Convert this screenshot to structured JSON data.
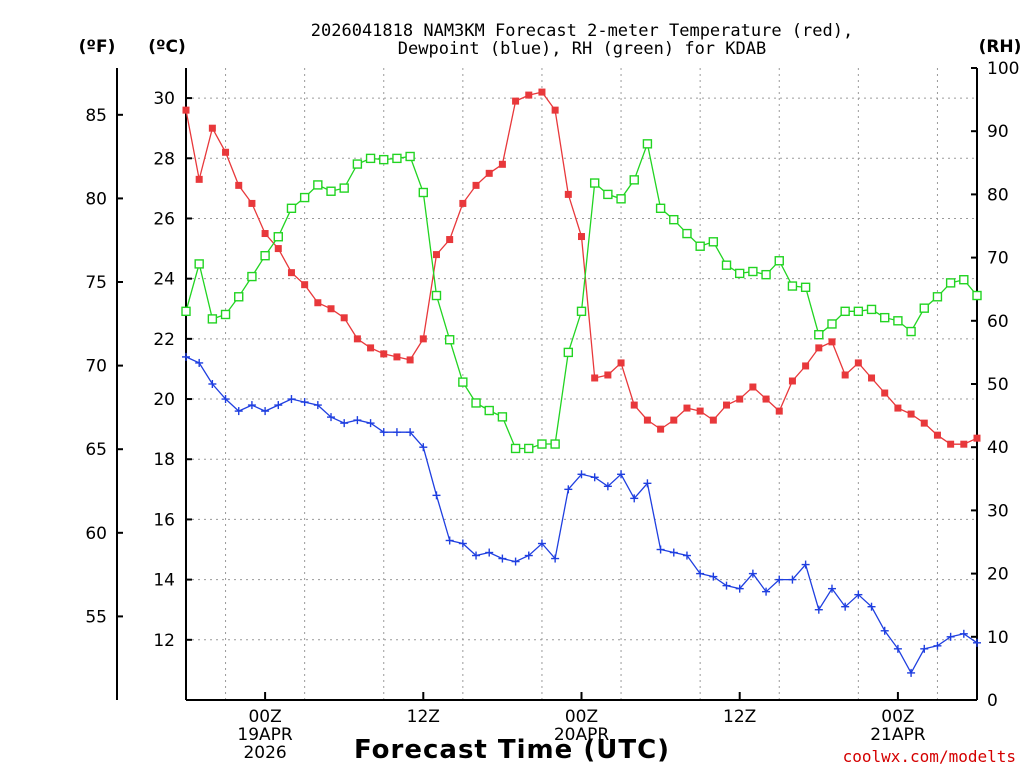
{
  "chart_data": {
    "type": "line",
    "title_line1": "2026041818 NAM3KM Forecast 2-meter Temperature (red),",
    "title_line2": "Dewpoint (blue), RH (green) for KDAB",
    "xlabel": "Forecast Time (UTC)",
    "credit": "coolwx.com/modelts",
    "units": {
      "fahrenheit": "(ºF)",
      "celsius": "(ºC)",
      "rh": "(RH)"
    },
    "x_range_hours": [
      -6,
      54
    ],
    "x_ticks": [
      {
        "hour": 0,
        "lines": [
          "00Z",
          "19APR",
          "2026"
        ]
      },
      {
        "hour": 12,
        "lines": [
          "12Z"
        ]
      },
      {
        "hour": 24,
        "lines": [
          "00Z",
          "20APR"
        ]
      },
      {
        "hour": 36,
        "lines": [
          "12Z"
        ]
      },
      {
        "hour": 48,
        "lines": [
          "00Z",
          "21APR"
        ]
      }
    ],
    "y_c_range": [
      10,
      31
    ],
    "y_c_ticks": [
      "12",
      "14",
      "16",
      "18",
      "20",
      "22",
      "24",
      "26",
      "28",
      "30"
    ],
    "y_f_ticks": [
      "55",
      "60",
      "65",
      "70",
      "75",
      "80",
      "85"
    ],
    "y_rh_range": [
      0,
      100
    ],
    "y_rh_ticks": [
      "0",
      "10",
      "20",
      "30",
      "40",
      "50",
      "60",
      "70",
      "80",
      "90",
      "100"
    ],
    "grid": true,
    "series": [
      {
        "name": "Temperature",
        "color": "#e8383b",
        "axis": "celsius",
        "marker": "filled-square",
        "values": [
          [
            -6,
            29.6
          ],
          [
            -5,
            27.3
          ],
          [
            -4,
            29.0
          ],
          [
            -3,
            28.2
          ],
          [
            -2,
            27.1
          ],
          [
            -1,
            26.5
          ],
          [
            0,
            25.5
          ],
          [
            1,
            25.0
          ],
          [
            2,
            24.2
          ],
          [
            3,
            23.8
          ],
          [
            4,
            23.2
          ],
          [
            5,
            23.0
          ],
          [
            6,
            22.7
          ],
          [
            7,
            22.0
          ],
          [
            8,
            21.7
          ],
          [
            9,
            21.5
          ],
          [
            10,
            21.4
          ],
          [
            11,
            21.3
          ],
          [
            12,
            22.0
          ],
          [
            13,
            24.8
          ],
          [
            14,
            25.3
          ],
          [
            15,
            26.5
          ],
          [
            16,
            27.1
          ],
          [
            17,
            27.5
          ],
          [
            18,
            27.8
          ],
          [
            19,
            29.9
          ],
          [
            20,
            30.1
          ],
          [
            21,
            30.2
          ],
          [
            22,
            29.6
          ],
          [
            23,
            26.8
          ],
          [
            24,
            25.4
          ],
          [
            25,
            20.7
          ],
          [
            26,
            20.8
          ],
          [
            27,
            21.2
          ],
          [
            28,
            19.8
          ],
          [
            29,
            19.3
          ],
          [
            30,
            19.0
          ],
          [
            31,
            19.3
          ],
          [
            32,
            19.7
          ],
          [
            33,
            19.6
          ],
          [
            34,
            19.3
          ],
          [
            35,
            19.8
          ],
          [
            36,
            20.0
          ],
          [
            37,
            20.4
          ],
          [
            38,
            20.0
          ],
          [
            39,
            19.6
          ],
          [
            40,
            20.6
          ],
          [
            41,
            21.1
          ],
          [
            42,
            21.7
          ],
          [
            43,
            21.9
          ],
          [
            44,
            20.8
          ],
          [
            45,
            21.2
          ],
          [
            46,
            20.7
          ],
          [
            47,
            20.2
          ],
          [
            48,
            19.7
          ],
          [
            49,
            19.5
          ],
          [
            50,
            19.2
          ],
          [
            51,
            18.8
          ],
          [
            52,
            18.5
          ],
          [
            53,
            18.5
          ],
          [
            54,
            18.7
          ]
        ]
      },
      {
        "name": "Dewpoint",
        "color": "#1f3fe0",
        "axis": "celsius",
        "marker": "plus",
        "values": [
          [
            -6,
            21.4
          ],
          [
            -5,
            21.2
          ],
          [
            -4,
            20.5
          ],
          [
            -3,
            20.0
          ],
          [
            -2,
            19.6
          ],
          [
            -1,
            19.8
          ],
          [
            0,
            19.6
          ],
          [
            1,
            19.8
          ],
          [
            2,
            20.0
          ],
          [
            3,
            19.9
          ],
          [
            4,
            19.8
          ],
          [
            5,
            19.4
          ],
          [
            6,
            19.2
          ],
          [
            7,
            19.3
          ],
          [
            8,
            19.2
          ],
          [
            9,
            18.9
          ],
          [
            10,
            18.9
          ],
          [
            11,
            18.9
          ],
          [
            12,
            18.4
          ],
          [
            13,
            16.8
          ],
          [
            14,
            15.3
          ],
          [
            15,
            15.2
          ],
          [
            16,
            14.8
          ],
          [
            17,
            14.9
          ],
          [
            18,
            14.7
          ],
          [
            19,
            14.6
          ],
          [
            20,
            14.8
          ],
          [
            21,
            15.2
          ],
          [
            22,
            14.7
          ],
          [
            23,
            17.0
          ],
          [
            24,
            17.5
          ],
          [
            25,
            17.4
          ],
          [
            26,
            17.1
          ],
          [
            27,
            17.5
          ],
          [
            28,
            16.7
          ],
          [
            29,
            17.2
          ],
          [
            30,
            15.0
          ],
          [
            31,
            14.9
          ],
          [
            32,
            14.8
          ],
          [
            33,
            14.2
          ],
          [
            34,
            14.1
          ],
          [
            35,
            13.8
          ],
          [
            36,
            13.7
          ],
          [
            37,
            14.2
          ],
          [
            38,
            13.6
          ],
          [
            39,
            14.0
          ],
          [
            40,
            14.0
          ],
          [
            41,
            14.5
          ],
          [
            42,
            13.0
          ],
          [
            43,
            13.7
          ],
          [
            44,
            13.1
          ],
          [
            45,
            13.5
          ],
          [
            46,
            13.1
          ],
          [
            47,
            12.3
          ],
          [
            48,
            11.7
          ],
          [
            49,
            10.9
          ],
          [
            50,
            11.7
          ],
          [
            51,
            11.8
          ],
          [
            52,
            12.1
          ],
          [
            53,
            12.2
          ],
          [
            54,
            11.9
          ]
        ]
      },
      {
        "name": "RH",
        "color": "#22d422",
        "axis": "rh",
        "marker": "open-square",
        "values": [
          [
            -6,
            61.5
          ],
          [
            -5,
            69.0
          ],
          [
            -4,
            60.3
          ],
          [
            -3,
            61.0
          ],
          [
            -2,
            63.8
          ],
          [
            -1,
            67.0
          ],
          [
            0,
            70.3
          ],
          [
            1,
            73.3
          ],
          [
            2,
            77.8
          ],
          [
            3,
            79.5
          ],
          [
            4,
            81.5
          ],
          [
            5,
            80.5
          ],
          [
            6,
            81.0
          ],
          [
            7,
            84.8
          ],
          [
            8,
            85.7
          ],
          [
            9,
            85.5
          ],
          [
            10,
            85.7
          ],
          [
            11,
            86.0
          ],
          [
            12,
            80.3
          ],
          [
            13,
            64.0
          ],
          [
            14,
            57.0
          ],
          [
            15,
            50.3
          ],
          [
            16,
            47.0
          ],
          [
            17,
            45.8
          ],
          [
            18,
            44.8
          ],
          [
            19,
            39.8
          ],
          [
            20,
            39.8
          ],
          [
            21,
            40.5
          ],
          [
            22,
            40.5
          ],
          [
            23,
            55.0
          ],
          [
            24,
            61.5
          ],
          [
            25,
            81.8
          ],
          [
            26,
            80.0
          ],
          [
            27,
            79.3
          ],
          [
            28,
            82.3
          ],
          [
            29,
            88.0
          ],
          [
            30,
            77.8
          ],
          [
            31,
            76.0
          ],
          [
            32,
            73.8
          ],
          [
            33,
            71.8
          ],
          [
            34,
            72.5
          ],
          [
            35,
            68.8
          ],
          [
            36,
            67.5
          ],
          [
            37,
            67.8
          ],
          [
            38,
            67.3
          ],
          [
            39,
            69.5
          ],
          [
            40,
            65.5
          ],
          [
            41,
            65.3
          ],
          [
            42,
            57.8
          ],
          [
            43,
            59.5
          ],
          [
            44,
            61.5
          ],
          [
            45,
            61.5
          ],
          [
            46,
            61.8
          ],
          [
            47,
            60.5
          ],
          [
            48,
            60.0
          ],
          [
            49,
            58.3
          ],
          [
            50,
            62.0
          ],
          [
            51,
            63.8
          ],
          [
            52,
            66.0
          ],
          [
            53,
            66.5
          ],
          [
            54,
            64.0
          ]
        ]
      }
    ]
  }
}
